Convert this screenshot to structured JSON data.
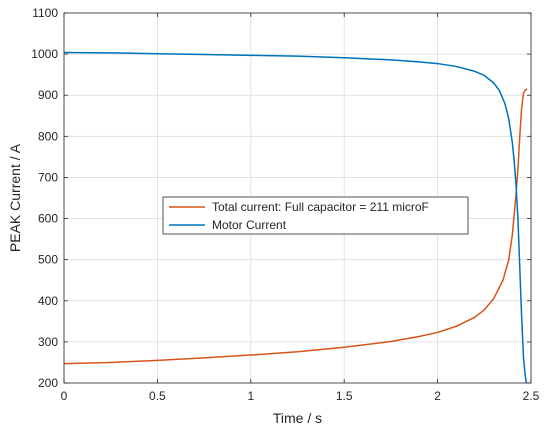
{
  "chart_data": {
    "type": "line",
    "title": "",
    "xlabel": "Time / s",
    "ylabel": "PEAK Current / A",
    "xlim": [
      0,
      2.5
    ],
    "ylim": [
      200,
      1100
    ],
    "xticks": [
      0,
      0.5,
      1,
      1.5,
      2,
      2.5
    ],
    "xtick_labels": [
      "0",
      "0.5",
      "1",
      "1.5",
      "2",
      "2.5"
    ],
    "yticks": [
      200,
      300,
      400,
      500,
      600,
      700,
      800,
      900,
      1000,
      1100
    ],
    "ytick_labels": [
      "200",
      "300",
      "400",
      "500",
      "600",
      "700",
      "800",
      "900",
      "1000",
      "1100"
    ],
    "grid": true,
    "legend_position": "center",
    "series": [
      {
        "name": "Total current: Full capacitor = 211 microF",
        "color": "#D95319",
        "x": [
          0,
          0.25,
          0.5,
          0.75,
          1.0,
          1.25,
          1.5,
          1.75,
          1.9,
          2.0,
          2.1,
          2.2,
          2.25,
          2.3,
          2.35,
          2.38,
          2.4,
          2.42,
          2.43,
          2.44,
          2.45,
          2.46,
          2.47,
          2.48
        ],
        "values": [
          247,
          250,
          255,
          261,
          268,
          276,
          287,
          301,
          313,
          323,
          338,
          360,
          378,
          405,
          450,
          498,
          560,
          660,
          720,
          800,
          870,
          905,
          913,
          915
        ]
      },
      {
        "name": "Motor Current",
        "color": "#0072BD",
        "x": [
          0,
          0.25,
          0.5,
          0.75,
          1.0,
          1.25,
          1.5,
          1.75,
          1.9,
          2.0,
          2.1,
          2.2,
          2.25,
          2.3,
          2.33,
          2.36,
          2.38,
          2.4,
          2.41,
          2.42,
          2.43,
          2.44,
          2.45,
          2.46,
          2.47,
          2.475
        ],
        "values": [
          1004,
          1003,
          1001,
          999,
          997,
          995,
          991,
          986,
          981,
          977,
          970,
          958,
          948,
          930,
          912,
          880,
          845,
          785,
          740,
          680,
          600,
          480,
          360,
          260,
          215,
          200
        ]
      }
    ]
  }
}
